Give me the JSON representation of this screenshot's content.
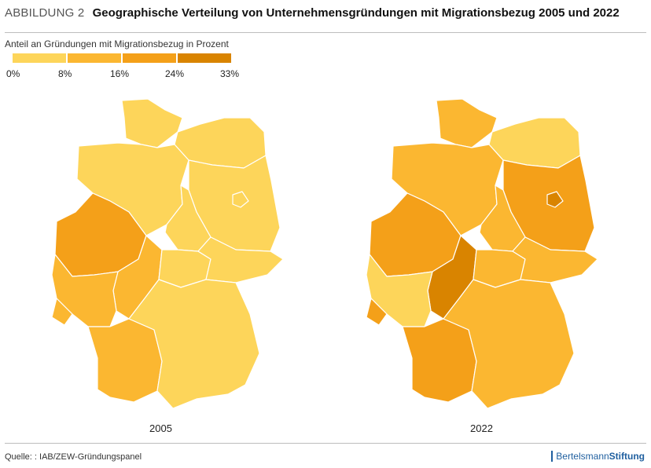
{
  "header": {
    "figure_label": "ABBILDUNG 2",
    "title": "Geographische Verteilung von Unternehmensgründungen mit Migrationsbezug 2005 und 2022"
  },
  "legend": {
    "title": "Anteil an Gründungen mit Migrationsbezug in Prozent",
    "ticks": [
      "0%",
      "8%",
      "16%",
      "24%",
      "33%"
    ],
    "colors": [
      "#fdd55a",
      "#fbb731",
      "#f4a019",
      "#d98400"
    ]
  },
  "maps": {
    "left_year": "2005",
    "right_year": "2022"
  },
  "footer": {
    "source": "Quelle: : IAB/ZEW-Gründungspanel",
    "brand_regular": "Bertelsmann",
    "brand_bold": "Stiftung"
  }
}
